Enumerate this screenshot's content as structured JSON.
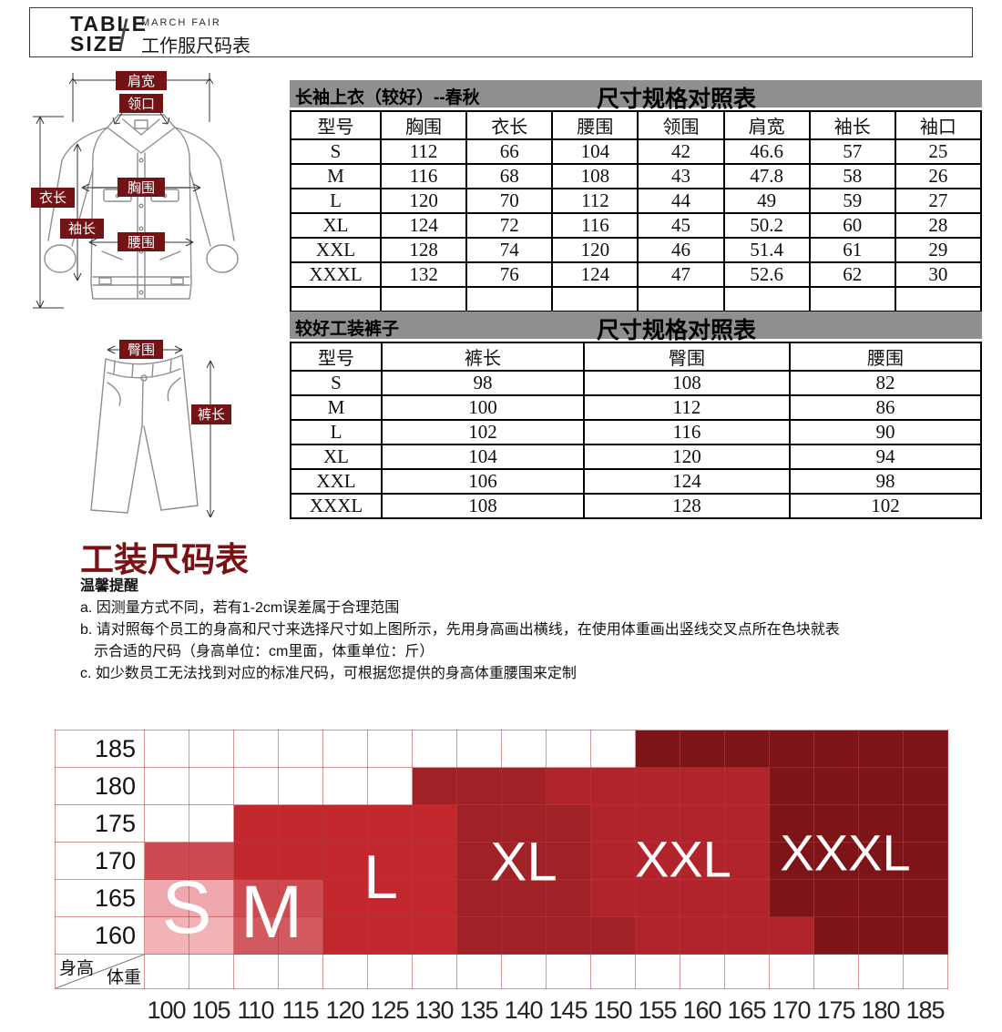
{
  "banner": {
    "brand_line1": "TABLE",
    "brand_line2": "SIZE",
    "slash": "/",
    "subtitle_en": "MARCH FAIR",
    "subtitle_cn": "工作服尺码表"
  },
  "diagram": {
    "labels": {
      "shoulder": "肩宽",
      "collar": "领口",
      "jacket_length": "衣长",
      "sleeve_length": "袖长",
      "chest": "胸围",
      "waist": "腰围",
      "hip": "臀围",
      "pants_length": "裤长"
    }
  },
  "jacket_table": {
    "title_left": "长袖上衣（较好）--春秋",
    "title_right": "尺寸规格对照表",
    "columns": [
      "型号",
      "胸围",
      "衣长",
      "腰围",
      "领围",
      "肩宽",
      "袖长",
      "袖口"
    ],
    "rows": [
      [
        "S",
        "112",
        "66",
        "104",
        "42",
        "46.6",
        "57",
        "25"
      ],
      [
        "M",
        "116",
        "68",
        "108",
        "43",
        "47.8",
        "58",
        "26"
      ],
      [
        "L",
        "120",
        "70",
        "112",
        "44",
        "49",
        "59",
        "27"
      ],
      [
        "XL",
        "124",
        "72",
        "116",
        "45",
        "50.2",
        "60",
        "28"
      ],
      [
        "XXL",
        "128",
        "74",
        "120",
        "46",
        "51.4",
        "61",
        "29"
      ],
      [
        "XXXL",
        "132",
        "76",
        "124",
        "47",
        "52.6",
        "62",
        "30"
      ]
    ],
    "has_trailing_empty_row": true
  },
  "pants_table": {
    "title_left": "较好工装裤子",
    "title_right": "尺寸规格对照表",
    "columns": [
      "型号",
      "裤长",
      "臀围",
      "腰围"
    ],
    "rows": [
      [
        "S",
        "98",
        "108",
        "82"
      ],
      [
        "M",
        "100",
        "112",
        "86"
      ],
      [
        "L",
        "102",
        "116",
        "90"
      ],
      [
        "XL",
        "104",
        "120",
        "94"
      ],
      [
        "XXL",
        "106",
        "124",
        "98"
      ],
      [
        "XXXL",
        "108",
        "128",
        "102"
      ]
    ]
  },
  "notes": {
    "section_title": "工装尺码表",
    "reminder_title": "温馨提醒",
    "line_a": "a. 因测量方式不同，若有1-2cm误差属于合理范围",
    "line_b1": "b. 请对照每个员工的身高和尺寸来选择尺寸如上图所示，先用身高画出横线，在使用体重画出竖线交叉点所在色块就表",
    "line_b2": "示合适的尺码（身高单位：cm里面，体重单位：斤）",
    "line_c": "c. 如少数员工无法找到对应的标准尺码，可根据您提供的身高体重腰围来定制"
  },
  "chart_data": {
    "type": "heatmap",
    "title": "",
    "x_axis_label": "体重",
    "y_axis_label": "身高",
    "x_unit": "斤",
    "y_unit": "cm",
    "x_ticks": [
      "100",
      "105",
      "110",
      "115",
      "120",
      "125",
      "130",
      "135",
      "140",
      "145",
      "150",
      "155",
      "160",
      "165",
      "170",
      "175",
      "180",
      "185"
    ],
    "y_ticks": [
      "185",
      "180",
      "175",
      "170",
      "165",
      "160"
    ],
    "size_regions": [
      "S",
      "M",
      "L",
      "XL",
      "XXL",
      "XXXL"
    ],
    "regions_summary": [
      {
        "size": "S",
        "weight_range": "100-105",
        "height_range": "160-170"
      },
      {
        "size": "M",
        "weight_range": "110-115",
        "height_range": "160-165"
      },
      {
        "size": "L",
        "weight_range": "110-130",
        "height_range": "160-175"
      },
      {
        "size": "XL",
        "weight_range": "130-150",
        "height_range": "160-180"
      },
      {
        "size": "XXL",
        "weight_range": "145-170",
        "height_range": "160-180"
      },
      {
        "size": "XXXL",
        "weight_range": "155-185",
        "height_range": "160-185"
      }
    ],
    "palette": {
      "w": "#ffffff",
      "s0": "#f2b3b7",
      "s1": "#eea7ac",
      "s2": "#cf4a50",
      "m0": "#d2595f",
      "m1": "#cf4a50",
      "l": "#c1272d",
      "xl": "#a02126",
      "x2": "#b2242b",
      "x3": "#7d1417"
    },
    "cells": [
      [
        "w",
        "w",
        "w",
        "w",
        "w",
        "w",
        "w",
        "w",
        "w",
        "w",
        "w",
        "x3",
        "x3",
        "x3",
        "x3",
        "x3",
        "x3",
        "x3"
      ],
      [
        "w",
        "w",
        "w",
        "w",
        "w",
        "w",
        "xl",
        "xl",
        "xl",
        "x2",
        "x2",
        "x2",
        "x2",
        "x2",
        "x3",
        "x3",
        "x3",
        "x3"
      ],
      [
        "w",
        "w",
        "l",
        "l",
        "l",
        "l",
        "l",
        "xl",
        "xl",
        "xl",
        "x2",
        "x2",
        "x2",
        "x2",
        "x3",
        "x3",
        "x3",
        "x3"
      ],
      [
        "s2",
        "s2",
        "l",
        "l",
        "l",
        "l",
        "l",
        "xl",
        "xl",
        "xl",
        "x2",
        "x2",
        "x2",
        "x2",
        "x3",
        "x3",
        "x3",
        "x3"
      ],
      [
        "s1",
        "s1",
        "m1",
        "m1",
        "l",
        "l",
        "l",
        "xl",
        "xl",
        "xl",
        "x2",
        "x2",
        "x2",
        "x2",
        "x3",
        "x3",
        "x3",
        "x3"
      ],
      [
        "s0",
        "s0",
        "m0",
        "m0",
        "l",
        "l",
        "l",
        "xl",
        "xl",
        "xl",
        "xl",
        "x2",
        "x2",
        "x2",
        "x2",
        "x3",
        "x3",
        "x3"
      ]
    ],
    "grid": true,
    "gridline_color": "#d9888c"
  }
}
